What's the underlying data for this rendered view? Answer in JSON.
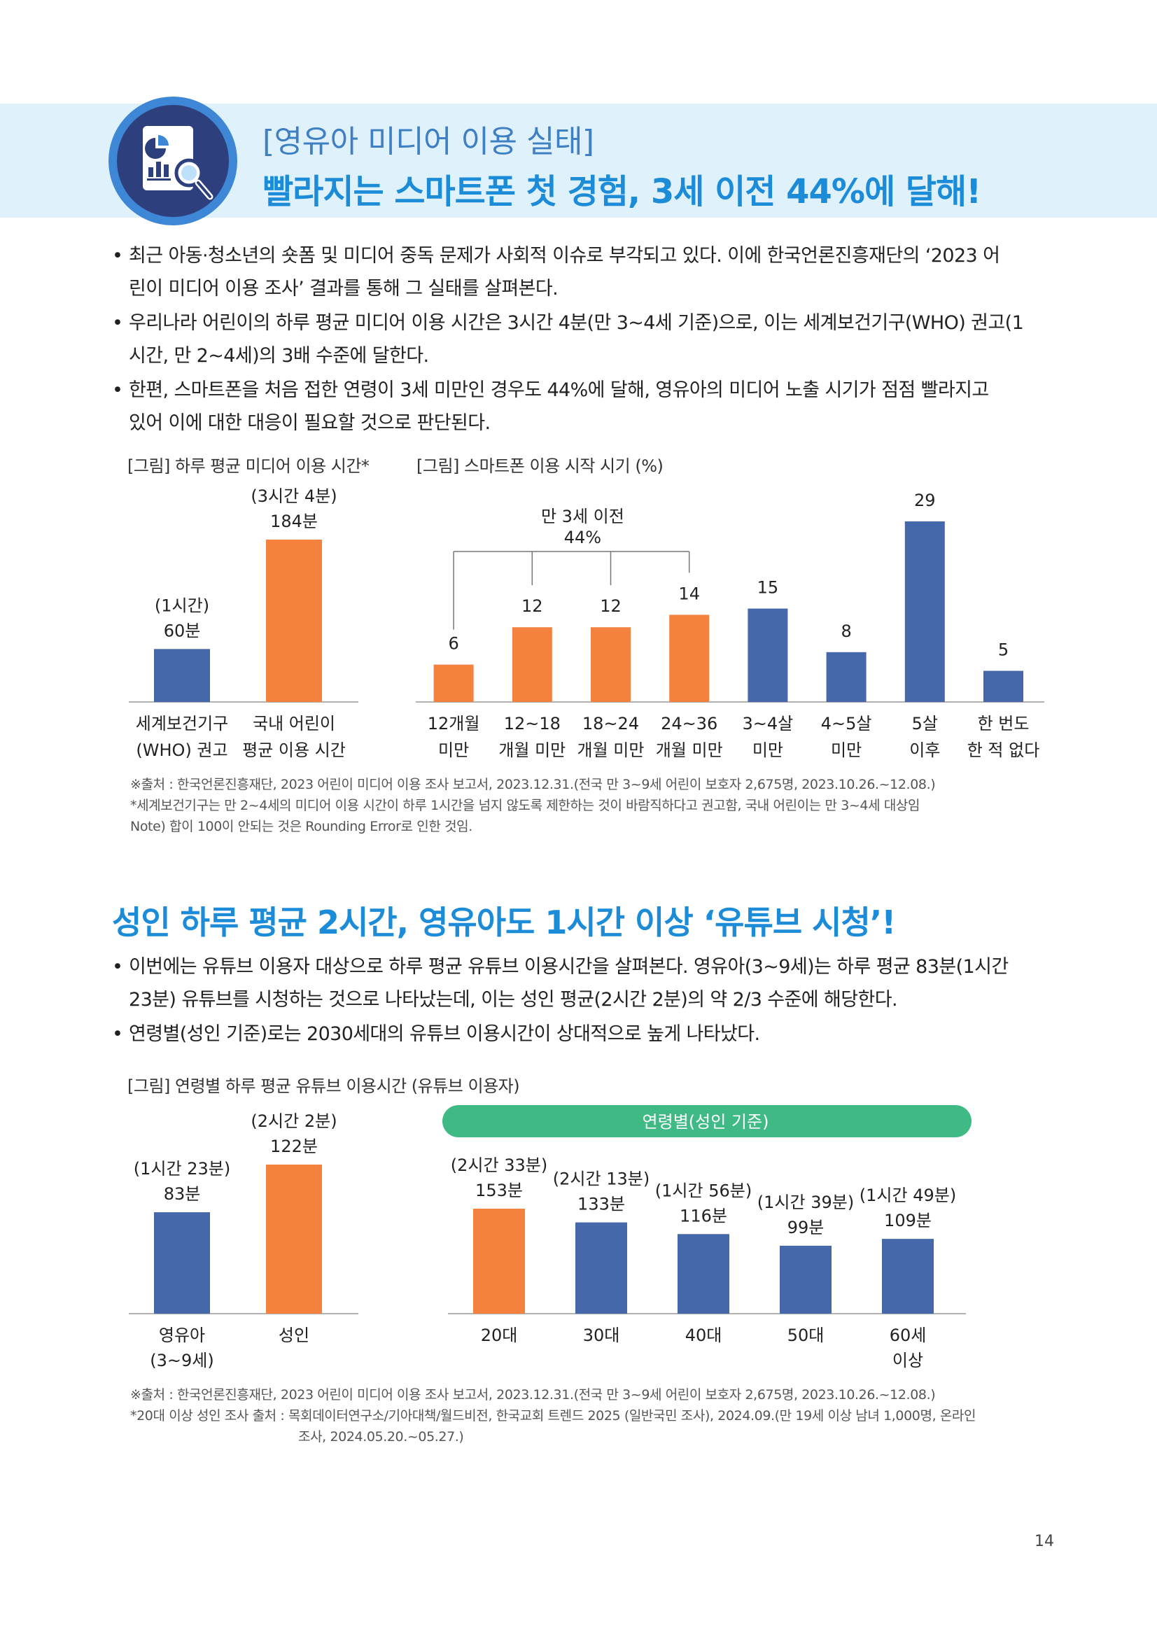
{
  "banner": {
    "subtitle": "[영유아 미디어 이용 실태]",
    "title": "빨라지는 스마트폰 첫 경험, 3세 이전 44%에 달해!",
    "icon": "report-magnifier-icon"
  },
  "intro_bullets": [
    {
      "line1": "최근 아동·청소년의 숏폼 및 미디어 중독 문제가 사회적 이슈로 부각되고 있다. 이에 한국언론진흥재단의 ‘2023 어",
      "line2": "린이 미디어 이용 조사’ 결과를 통해 그 실태를 살펴본다."
    },
    {
      "line1": "우리나라 어린이의 하루 평균 미디어 이용 시간은 3시간 4분(만 3~4세 기준)으로, 이는 세계보건기구(WHO) 권고(1",
      "line2": "시간, 만 2~4세)의 3배 수준에 달한다."
    },
    {
      "line1": "한편, 스마트폰을 처음 접한 연령이 3세 미만인 경우도 44%에 달해, 영유아의 미디어 노출 시기가 점점 빨라지고",
      "line2": "있어 이에 대한 대응이 필요할 것으로 판단된다."
    }
  ],
  "section2": {
    "title": "성인 하루 평균 2시간, 영유아도 1시간 이상 ‘유튜브 시청’!",
    "bullets": [
      {
        "line1": "이번에는 유튜브 이용자 대상으로 하루 평균 유튜브 이용시간을 살펴본다. 영유아(3~9세)는 하루 평균 83분(1시간",
        "line2": "23분) 유튜브를 시청하는 것으로 나타났는데, 이는 성인 평균(2시간 2분)의 약 2/3 수준에 해당한다."
      },
      {
        "line1": "연령별(성인 기준)로는 2030세대의 유튜브 이용시간이 상대적으로 높게 나타났다.",
        "line2": ""
      }
    ]
  },
  "sources1": {
    "line1": "※출처 : 한국언론진흥재단, 2023 어린이 미디어 이용 조사 보고서, 2023.12.31.(전국 만 3~9세 어린이 보호자 2,675명, 2023.10.26.~12.08.)",
    "line2": "*세계보건기구는 만 2~4세의 미디어 이용 시간이 하루 1시간을 넘지 않도록 제한하는 것이 바람직하다고 권고함, 국내 어린이는 만 3~4세 대상임",
    "line3": "Note) 합이 100이 안되는 것은 Rounding Error로 인한 것임."
  },
  "sources2": {
    "line1": "※출처 : 한국언론진흥재단, 2023 어린이 미디어 이용 조사 보고서, 2023.12.31.(전국 만 3~9세 어린이 보호자 2,675명, 2023.10.26.~12.08.)",
    "line2": "*20대 이상 성인 조사 출처 : 목회데이터연구소/기아대책/월드비전, 한국교회 트렌드 2025 (일반국민 조사), 2024.09.(만 19세 이상 남녀 1,000명, 온라인",
    "line3": "조사, 2024.05.20.~05.27.)"
  },
  "page_number": "14",
  "colors": {
    "orange": "#f5813f",
    "blue": "#4468a9",
    "green": "#3fba85",
    "banner_bg": "#dff1fb",
    "accent": "#1d8cd8"
  },
  "chart_data": [
    {
      "type": "bar",
      "caption": "[그림] 하루 평균 미디어 이용 시간*",
      "categories": [
        [
          "세계보건기구",
          "(WHO) 권고"
        ],
        [
          "국내 어린이",
          "평균 이용 시간"
        ]
      ],
      "values": [
        60,
        184
      ],
      "value_labels": [
        "60분",
        "184분"
      ],
      "extra_labels": [
        "(1시간)",
        "(3시간 4분)"
      ],
      "colors": [
        "#4468a9",
        "#f5813f"
      ],
      "ylim": [
        0,
        184
      ]
    },
    {
      "type": "bar",
      "caption": "[그림] 스마트폰 이용 시작 시기 (%)",
      "categories": [
        [
          "12개월",
          "미만"
        ],
        [
          "12~18",
          "개월 미만"
        ],
        [
          "18~24",
          "개월 미만"
        ],
        [
          "24~36",
          "개월 미만"
        ],
        [
          "3~4살",
          "미만"
        ],
        [
          "4~5살",
          "미만"
        ],
        [
          "5살",
          "이후"
        ],
        [
          "한 번도",
          "한 적 없다"
        ]
      ],
      "values": [
        6,
        12,
        12,
        14,
        15,
        8,
        29,
        5
      ],
      "value_labels": [
        "6",
        "12",
        "12",
        "14",
        "15",
        "8",
        "29",
        "5"
      ],
      "colors": [
        "#f5813f",
        "#f5813f",
        "#f5813f",
        "#f5813f",
        "#4468a9",
        "#4468a9",
        "#4468a9",
        "#4468a9"
      ],
      "bracket": {
        "line1": "만 3세 이전",
        "line2": "44%",
        "span": [
          0,
          3
        ]
      },
      "ylim": [
        0,
        29
      ]
    },
    {
      "type": "bar",
      "caption": "[그림] 연령별 하루 평균 유튜브 이용시간 (유튜브 이용자)",
      "categories": [
        [
          "영유아",
          "(3~9세)"
        ],
        [
          "성인",
          ""
        ]
      ],
      "values": [
        83,
        122
      ],
      "value_labels": [
        "83분",
        "122분"
      ],
      "extra_labels": [
        "(1시간 23분)",
        "(2시간 2분)"
      ],
      "colors": [
        "#4468a9",
        "#f5813f"
      ],
      "ylim": [
        0,
        122
      ]
    },
    {
      "type": "bar",
      "header": "연령별(성인 기준)",
      "categories": [
        [
          "20대",
          ""
        ],
        [
          "30대",
          ""
        ],
        [
          "40대",
          ""
        ],
        [
          "50대",
          ""
        ],
        [
          "60세",
          "이상"
        ]
      ],
      "values": [
        153,
        133,
        116,
        99,
        109
      ],
      "value_labels": [
        "153분",
        "133분",
        "116분",
        "99분",
        "109분"
      ],
      "extra_labels": [
        "(2시간 33분)",
        "(2시간 13분)",
        "(1시간 56분)",
        "(1시간 39분)",
        "(1시간 49분)"
      ],
      "colors": [
        "#f5813f",
        "#4468a9",
        "#4468a9",
        "#4468a9",
        "#4468a9"
      ],
      "ylim": [
        0,
        153
      ]
    }
  ]
}
